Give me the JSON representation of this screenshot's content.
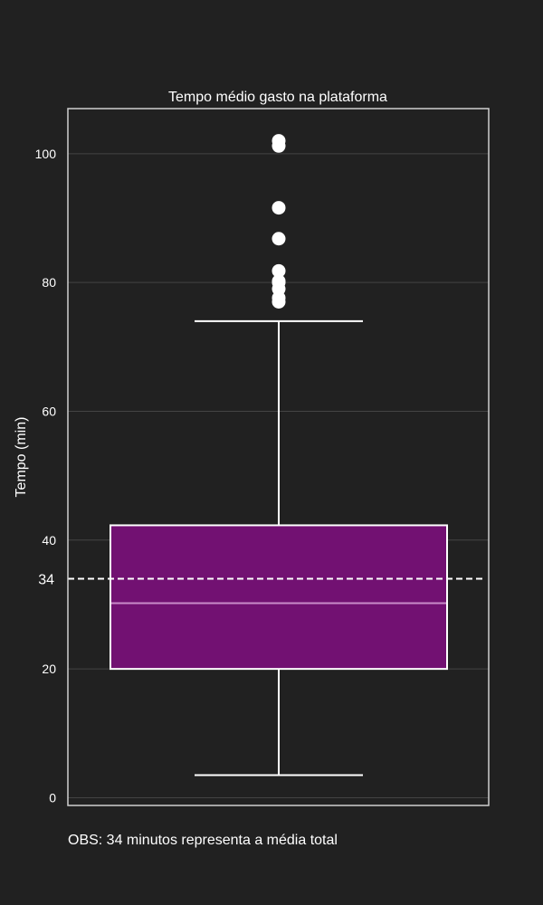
{
  "chart_data": {
    "type": "box",
    "title": "Tempo médio gasto na plataforma",
    "xlabel": "",
    "ylabel": "Tempo (min)",
    "ylim": [
      -1.2,
      107
    ],
    "yticks": [
      0,
      20,
      40,
      60,
      80,
      100
    ],
    "grid": true,
    "box": {
      "whisker_low": 3.5,
      "q1": 20,
      "median": 30.2,
      "q3": 42.3,
      "whisker_high": 74,
      "outliers": [
        77,
        77.6,
        79,
        80,
        80.2,
        81.8,
        86.8,
        91.6,
        101.2,
        102
      ]
    },
    "reference_line": {
      "value": 34,
      "label": "34"
    },
    "colors": {
      "background": "#212121",
      "box_fill": "#721172",
      "box_edge": "#ffffff",
      "median_line": "#c98ac9",
      "grid": "#444444",
      "frame": "#cfcfcf",
      "text": "#ffffff"
    }
  },
  "note": "OBS: 34 minutos representa a média total"
}
